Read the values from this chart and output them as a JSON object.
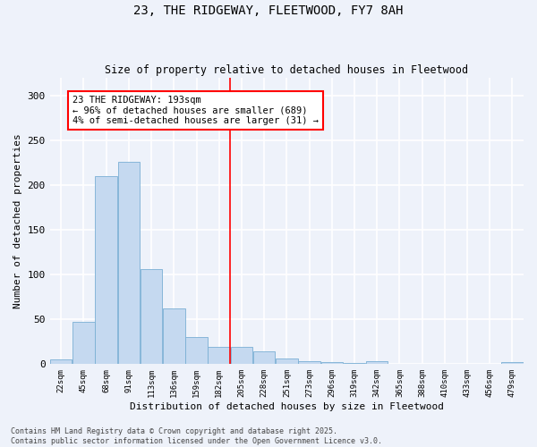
{
  "title_line1": "23, THE RIDGEWAY, FLEETWOOD, FY7 8AH",
  "title_line2": "Size of property relative to detached houses in Fleetwood",
  "xlabel": "Distribution of detached houses by size in Fleetwood",
  "ylabel": "Number of detached properties",
  "categories": [
    "22sqm",
    "45sqm",
    "68sqm",
    "91sqm",
    "113sqm",
    "136sqm",
    "159sqm",
    "182sqm",
    "205sqm",
    "228sqm",
    "251sqm",
    "273sqm",
    "296sqm",
    "319sqm",
    "342sqm",
    "365sqm",
    "388sqm",
    "410sqm",
    "433sqm",
    "456sqm",
    "479sqm"
  ],
  "values": [
    5,
    47,
    210,
    226,
    106,
    62,
    30,
    19,
    19,
    14,
    6,
    3,
    2,
    1,
    3,
    0,
    0,
    0,
    0,
    0,
    2
  ],
  "bar_color": "#c5d9f0",
  "bar_edge_color": "#7aafd4",
  "vline_color": "red",
  "annotation_text": "23 THE RIDGEWAY: 193sqm\n← 96% of detached houses are smaller (689)\n4% of semi-detached houses are larger (31) →",
  "annotation_box_color": "white",
  "annotation_box_edge_color": "red",
  "ylim": [
    0,
    320
  ],
  "yticks": [
    0,
    50,
    100,
    150,
    200,
    250,
    300
  ],
  "footnote": "Contains HM Land Registry data © Crown copyright and database right 2025.\nContains public sector information licensed under the Open Government Licence v3.0.",
  "bg_color": "#eef2fa",
  "grid_color": "white"
}
